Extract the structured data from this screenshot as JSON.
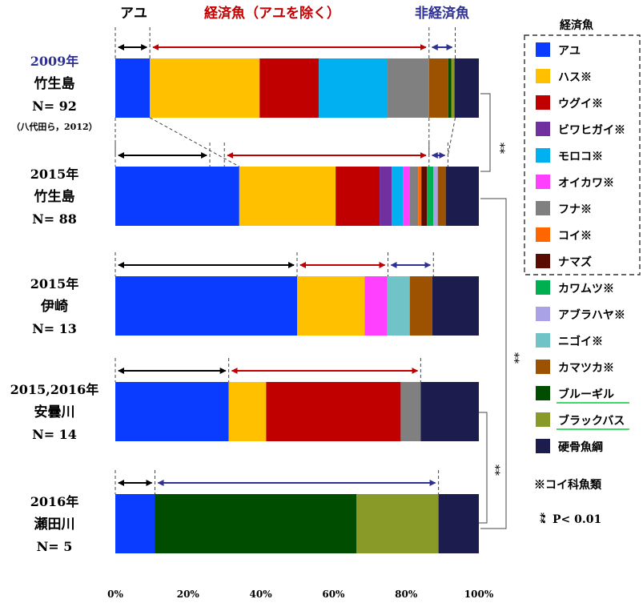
{
  "chart_data": {
    "type": "bar",
    "orientation": "horizontal",
    "stacked": true,
    "xlim": [
      0,
      100
    ],
    "x_ticks": [
      "0%",
      "20%",
      "40%",
      "60%",
      "80%",
      "100%"
    ],
    "categories": [
      {
        "year": "2009年",
        "site": "竹生島",
        "n": "N= 92",
        "note": "（八代田ら，2012）",
        "highlight": true
      },
      {
        "year": "2015年",
        "site": "竹生島",
        "n": "N= 88"
      },
      {
        "year": "2015年",
        "site": "伊崎",
        "n": "N= 13"
      },
      {
        "year": "2015,2016年",
        "site": "安曇川",
        "n": "N= 14"
      },
      {
        "year": "2016年",
        "site": "瀬田川",
        "n": "N= 5"
      }
    ],
    "series": [
      {
        "name": "アユ",
        "color": "#0a3cff",
        "values": [
          9.5,
          34.1,
          50.0,
          31.2,
          10.9
        ]
      },
      {
        "name": "ハス※",
        "color": "#ffc000",
        "values": [
          30.2,
          26.5,
          18.6,
          10.3,
          0
        ]
      },
      {
        "name": "ウグイ※",
        "color": "#c00000",
        "values": [
          16.3,
          12.1,
          0,
          37.0,
          0
        ]
      },
      {
        "name": "ビワヒガイ※",
        "color": "#7030a0",
        "values": [
          0,
          3.3,
          0,
          0,
          0
        ]
      },
      {
        "name": "モロコ※",
        "color": "#00b0f0",
        "values": [
          18.9,
          3.1,
          0,
          0,
          0
        ]
      },
      {
        "name": "オイカワ※",
        "color": "#ff40ff",
        "values": [
          0,
          1.8,
          6.2,
          0,
          0
        ]
      },
      {
        "name": "フナ※",
        "color": "#808080",
        "values": [
          11.4,
          2.4,
          0,
          5.5,
          0
        ]
      },
      {
        "name": "コイ※",
        "color": "#ff6600",
        "values": [
          0,
          0.9,
          0,
          0,
          0
        ]
      },
      {
        "name": "ナマズ",
        "color": "#5a0a00",
        "values": [
          0,
          1.5,
          0,
          0,
          0
        ]
      },
      {
        "name": "カワムツ※",
        "color": "#00b050",
        "values": [
          0,
          1.8,
          0,
          0,
          0
        ]
      },
      {
        "name": "アブラハヤ※",
        "color": "#a9a2e6",
        "values": [
          0,
          1.2,
          0,
          0,
          0
        ]
      },
      {
        "name": "ニゴイ※",
        "color": "#70c4c8",
        "values": [
          0,
          0,
          6.2,
          0,
          0
        ]
      },
      {
        "name": "カマツカ※",
        "color": "#9c5200",
        "values": [
          5.3,
          2.2,
          6.2,
          0,
          0
        ]
      },
      {
        "name": "ブルーギル",
        "color": "#004d00",
        "values": [
          0.8,
          0,
          0,
          0,
          55.4
        ],
        "underline": true
      },
      {
        "name": "ブラックバス",
        "color": "#8a9a28",
        "values": [
          0.9,
          0,
          0,
          0,
          22.6
        ],
        "underline": true
      },
      {
        "name": "硬骨魚綱",
        "color": "#1c1c4e",
        "values": [
          6.7,
          9.1,
          12.8,
          16.0,
          11.1
        ]
      }
    ],
    "bracket_colors": {
      "ayu": "#000000",
      "economic": "#c00000",
      "non_economic": "#2e3192"
    },
    "range_arrows": [
      {
        "row": 0,
        "ayu": [
          0,
          9.5
        ],
        "economic": [
          9.5,
          86.3
        ],
        "non_economic": [
          86.3,
          93.5
        ]
      },
      {
        "row": 1,
        "ayu": [
          0,
          26
        ],
        "economic": [
          30,
          86.3
        ],
        "non_economic": [
          86.3,
          91.5
        ]
      },
      {
        "row": 2,
        "ayu": [
          0,
          50.0
        ],
        "economic": [
          50.0,
          75.0
        ],
        "non_economic": [
          75.0,
          87.5
        ]
      },
      {
        "row": 3,
        "ayu": [
          0,
          31.2
        ],
        "economic": [
          31.2,
          84.0
        ]
      },
      {
        "row": 4,
        "ayu": [
          0,
          10.9
        ],
        "non_economic": [
          10.9,
          88.9
        ]
      }
    ],
    "top_labels": {
      "ayu": "アユ",
      "economic": "経済魚（アユを除く）",
      "non_economic": "非経済魚"
    },
    "legend_title": "経済魚",
    "footnote": "※コイ科魚類",
    "significance": {
      "marker": "**",
      "text": "：P< 0.01"
    }
  }
}
